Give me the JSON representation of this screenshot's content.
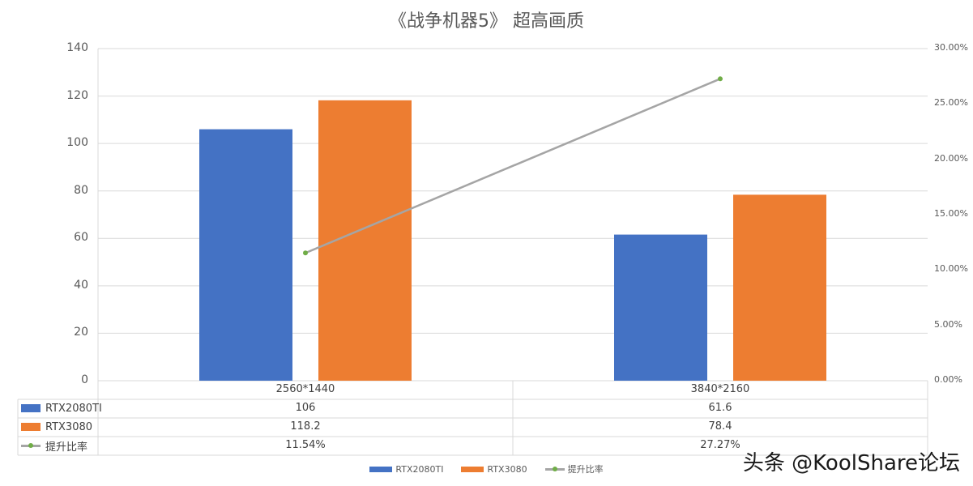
{
  "chart_data": {
    "type": "bar",
    "title": "《战争机器5》 超高画质",
    "categories": [
      "2560*1440",
      "3840*2160"
    ],
    "series": [
      {
        "name": "RTX2080TI",
        "type": "bar",
        "color": "#4472c4",
        "values": [
          106,
          61.6
        ],
        "labels": [
          "106",
          "61.6"
        ]
      },
      {
        "name": "RTX3080",
        "type": "bar",
        "color": "#ed7d31",
        "values": [
          118.2,
          78.4
        ],
        "labels": [
          "118.2",
          "78.4"
        ]
      },
      {
        "name": "提升比率",
        "type": "line",
        "axis": "secondary",
        "color": "#a5a5a5",
        "marker_color": "#70ad47",
        "values": [
          0.1154,
          0.2727
        ],
        "labels": [
          "11.54%",
          "27.27%"
        ]
      }
    ],
    "ylim": [
      0,
      140
    ],
    "yticks": [
      "0",
      "20",
      "40",
      "60",
      "80",
      "100",
      "120",
      "140"
    ],
    "y2lim": [
      0,
      0.3
    ],
    "y2ticks": [
      "0.00%",
      "5.00%",
      "10.00%",
      "15.00%",
      "20.00%",
      "25.00%",
      "30.00%"
    ],
    "grid": true,
    "data_table": true,
    "legend": "bottom"
  },
  "watermark": "头条 @KoolShare论坛"
}
